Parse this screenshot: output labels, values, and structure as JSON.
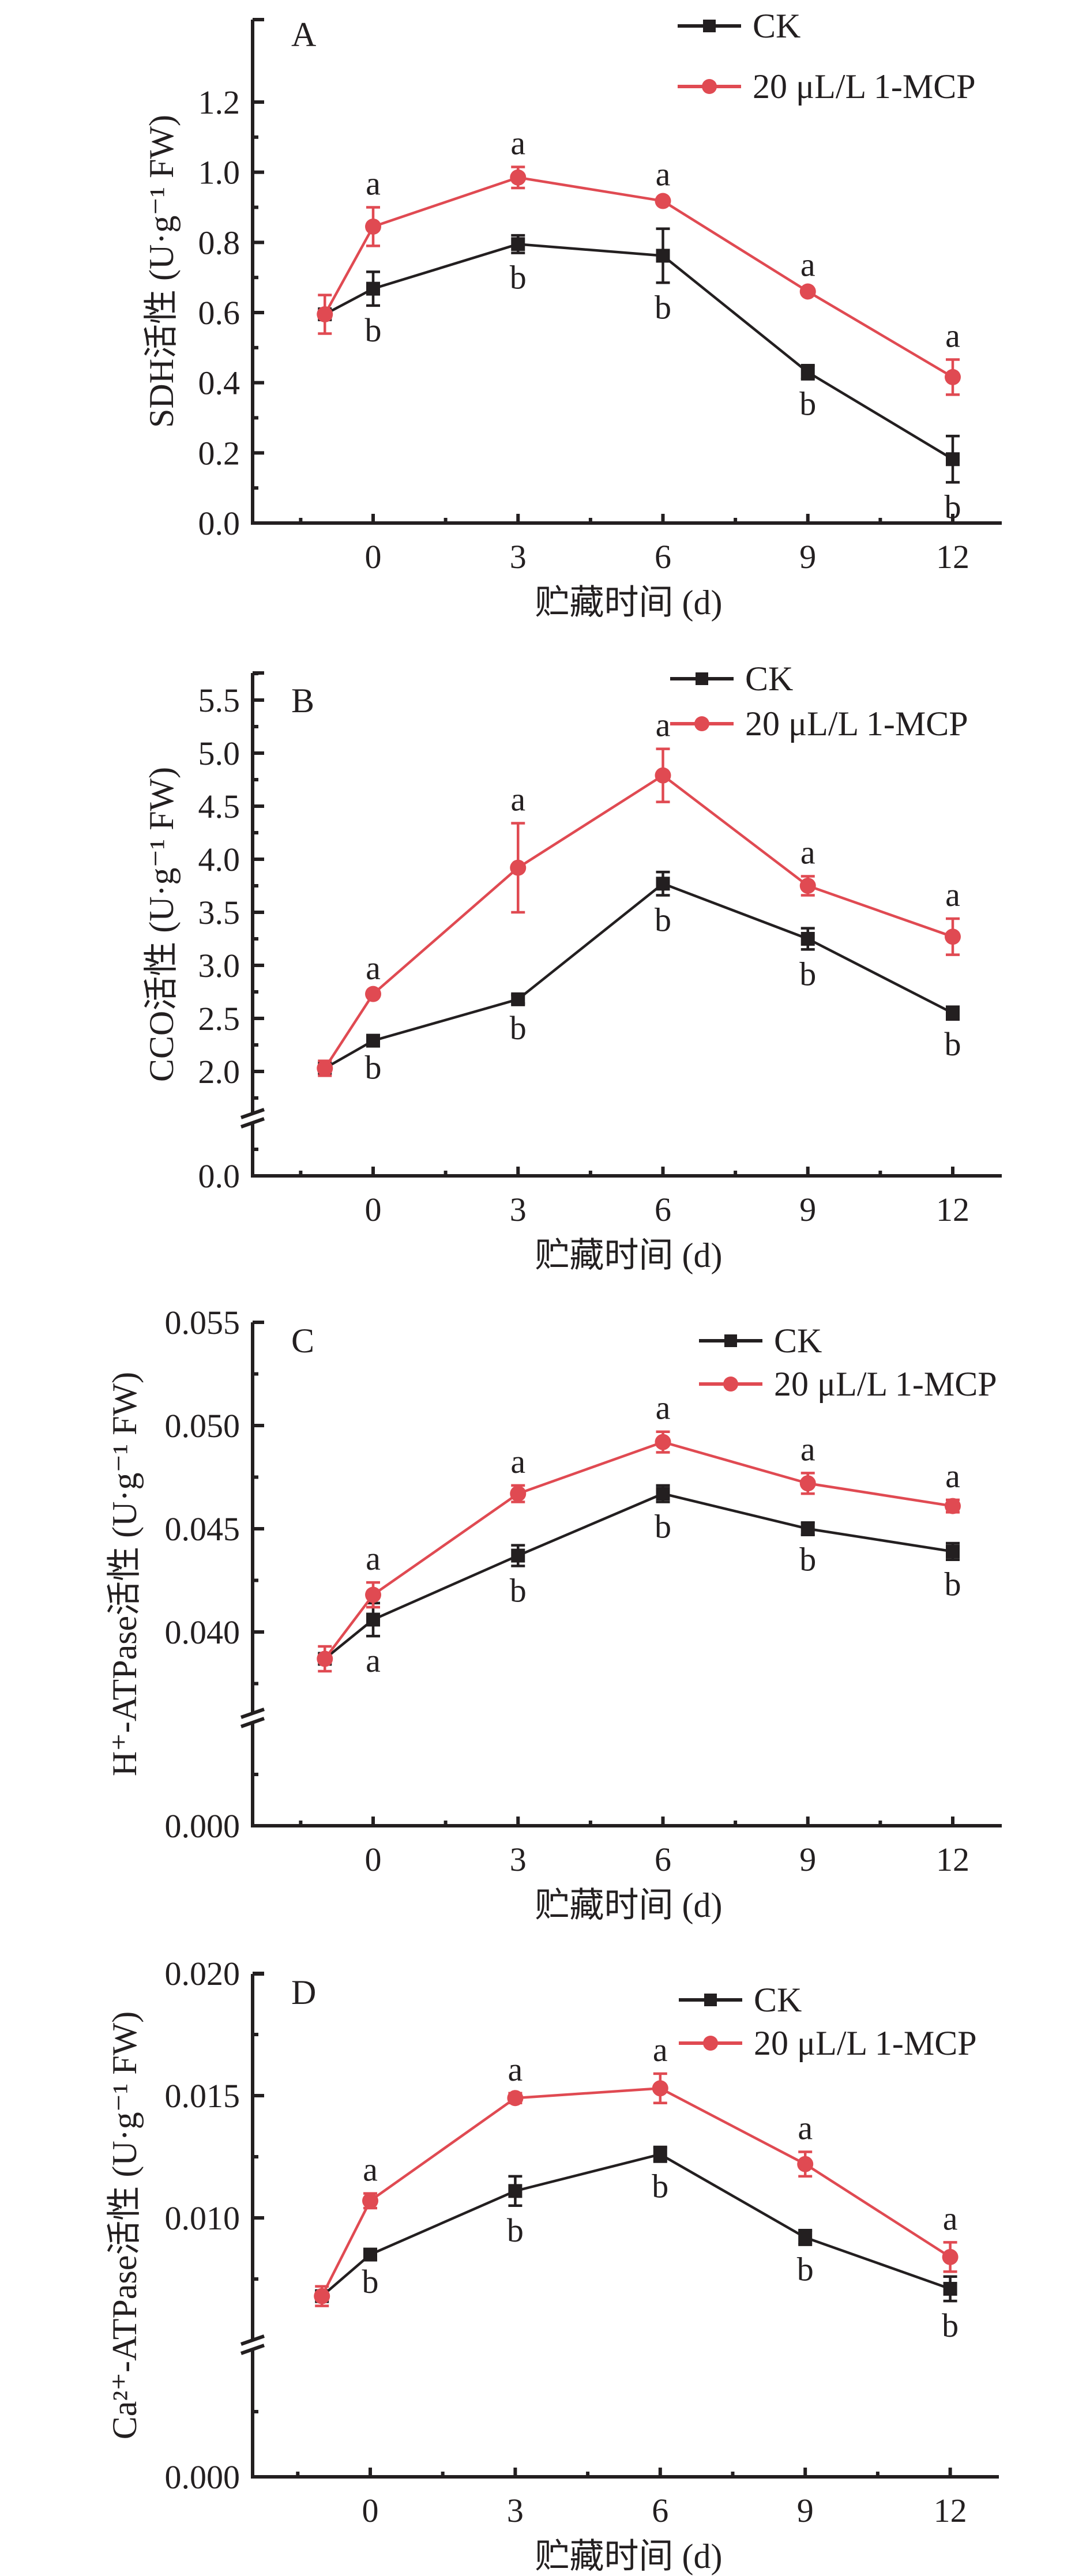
{
  "figure": {
    "xlabel": "贮藏时间 (d)",
    "legend": [
      {
        "name": "CK",
        "marker": "square",
        "color": "#231f20"
      },
      {
        "name": "20 μL/L 1-MCP",
        "marker": "circle",
        "color": "#e04a52"
      }
    ]
  },
  "chart_data": [
    {
      "type": "line",
      "panel": "A",
      "title": "",
      "xlabel": "贮藏时间 (d)",
      "ylabel": "SDH活性 (U·g⁻¹ FW)",
      "x": [
        -1,
        0,
        3,
        6,
        9,
        12
      ],
      "xticks": [
        0,
        3,
        6,
        9,
        12
      ],
      "xtick_labels": [
        "0",
        "3",
        "6",
        "9",
        "12"
      ],
      "xlim": [
        -2.5,
        13
      ],
      "ylim": [
        0,
        1.2
      ],
      "yticks": [
        0.0,
        0.2,
        0.4,
        0.6,
        0.8,
        1.0,
        1.2
      ],
      "ytick_labels": [
        "0.0",
        "0.2",
        "0.4",
        "0.6",
        "0.8",
        "1.0",
        "1.2"
      ],
      "y_break": null,
      "grid": false,
      "legend_position": "top-right",
      "series": [
        {
          "name": "CK",
          "values": [
            0.595,
            0.668,
            0.795,
            0.762,
            0.43,
            0.182
          ],
          "errors": [
            0.0,
            0.048,
            0.025,
            0.077,
            0.02,
            0.066
          ],
          "letters": [
            "",
            "b",
            "b",
            "b",
            "b",
            "b"
          ]
        },
        {
          "name": "20 μL/L 1-MCP",
          "values": [
            0.595,
            0.845,
            0.985,
            0.918,
            0.66,
            0.416
          ],
          "errors": [
            0.055,
            0.055,
            0.03,
            0.008,
            0.008,
            0.05
          ],
          "letters": [
            "",
            "a",
            "a",
            "a",
            "a",
            "a"
          ]
        }
      ]
    },
    {
      "type": "line",
      "panel": "B",
      "title": "",
      "xlabel": "贮藏时间 (d)",
      "ylabel": "CCO活性 (U·g⁻¹ FW)",
      "x": [
        -1,
        0,
        3,
        6,
        9,
        12
      ],
      "xticks": [
        0,
        3,
        6,
        9,
        12
      ],
      "xtick_labels": [
        "0",
        "3",
        "6",
        "9",
        "12"
      ],
      "xlim": [
        -2.5,
        13
      ],
      "ylim": [
        0,
        5.75
      ],
      "yticks": [
        0.0,
        2.0,
        2.5,
        3.0,
        3.5,
        4.0,
        4.5,
        5.0,
        5.5
      ],
      "ytick_labels": [
        "0.0",
        "2.0",
        "2.5",
        "3.0",
        "3.5",
        "4.0",
        "4.5",
        "5.0",
        "5.5"
      ],
      "y_break": [
        0.5,
        1.6
      ],
      "grid": false,
      "legend_position": "top-right",
      "series": [
        {
          "name": "CK",
          "values": [
            2.03,
            2.29,
            2.68,
            3.77,
            3.25,
            2.55
          ],
          "errors": [
            0.0,
            0.02,
            0.04,
            0.11,
            0.1,
            0.06
          ],
          "letters": [
            "",
            "b",
            "b",
            "b",
            "b",
            "b"
          ]
        },
        {
          "name": "20 μL/L 1-MCP",
          "values": [
            2.03,
            2.73,
            3.92,
            4.79,
            3.75,
            3.27
          ],
          "errors": [
            0.07,
            0.02,
            0.42,
            0.25,
            0.09,
            0.17
          ],
          "letters": [
            "",
            "a",
            "a",
            "a",
            "a",
            "a"
          ]
        }
      ]
    },
    {
      "type": "line",
      "panel": "C",
      "title": "",
      "xlabel": "贮藏时间 (d)",
      "ylabel": "H⁺-ATPase活性 (U·g⁻¹ FW)",
      "x": [
        -1,
        0,
        3,
        6,
        9,
        12
      ],
      "xticks": [
        0,
        3,
        6,
        9,
        12
      ],
      "xtick_labels": [
        "0",
        "3",
        "6",
        "9",
        "12"
      ],
      "xlim": [
        -2.5,
        13
      ],
      "ylim": [
        0,
        0.055
      ],
      "yticks": [
        0.0,
        0.04,
        0.045,
        0.05,
        0.055
      ],
      "ytick_labels": [
        "0.000",
        "0.040",
        "0.045",
        "0.050",
        "0.055"
      ],
      "y_break": [
        0.01,
        0.0365
      ],
      "grid": false,
      "legend_position": "top-right",
      "series": [
        {
          "name": "CK",
          "values": [
            0.0387,
            0.0406,
            0.0437,
            0.0467,
            0.045,
            0.0439
          ],
          "errors": [
            0.0,
            0.0008,
            0.0005,
            0.0004,
            0.0003,
            0.0004
          ],
          "letters": [
            "",
            "a",
            "b",
            "b",
            "b",
            "b"
          ]
        },
        {
          "name": "20 μL/L 1-MCP",
          "values": [
            0.0387,
            0.0418,
            0.0467,
            0.0492,
            0.0472,
            0.0461
          ],
          "errors": [
            0.0006,
            0.0006,
            0.0004,
            0.0005,
            0.0005,
            0.0003
          ],
          "letters": [
            "",
            "a",
            "a",
            "a",
            "a",
            "a"
          ]
        }
      ]
    },
    {
      "type": "line",
      "panel": "D",
      "title": "",
      "xlabel": "贮藏时间 (d)",
      "ylabel": "Ca²⁺-ATPase活性 (U·g⁻¹ FW)",
      "x": [
        -1,
        0,
        3,
        6,
        9,
        12
      ],
      "xticks": [
        0,
        3,
        6,
        9,
        12
      ],
      "xtick_labels": [
        "0",
        "3",
        "6",
        "9",
        "12"
      ],
      "xlim": [
        -2.5,
        13
      ],
      "ylim": [
        0,
        0.02
      ],
      "yticks": [
        0.0,
        0.01,
        0.015,
        0.02
      ],
      "ytick_labels": [
        "0.000",
        "0.010",
        "0.015",
        "0.020"
      ],
      "y_break": [
        0.003,
        0.0062
      ],
      "grid": false,
      "legend_position": "top-right",
      "series": [
        {
          "name": "CK",
          "values": [
            0.0068,
            0.0085,
            0.0111,
            0.0126,
            0.0092,
            0.0071
          ],
          "errors": [
            0.0,
            0.0001,
            0.0006,
            0.0003,
            0.0003,
            0.0005
          ],
          "letters": [
            "",
            "b",
            "b",
            "b",
            "b",
            "b"
          ]
        },
        {
          "name": "20 μL/L 1-MCP",
          "values": [
            0.0068,
            0.0107,
            0.0149,
            0.0153,
            0.0122,
            0.0084
          ],
          "errors": [
            0.0004,
            0.0003,
            0.0002,
            0.0006,
            0.0005,
            0.0006
          ],
          "letters": [
            "",
            "a",
            "a",
            "a",
            "a",
            "a"
          ]
        }
      ]
    }
  ]
}
